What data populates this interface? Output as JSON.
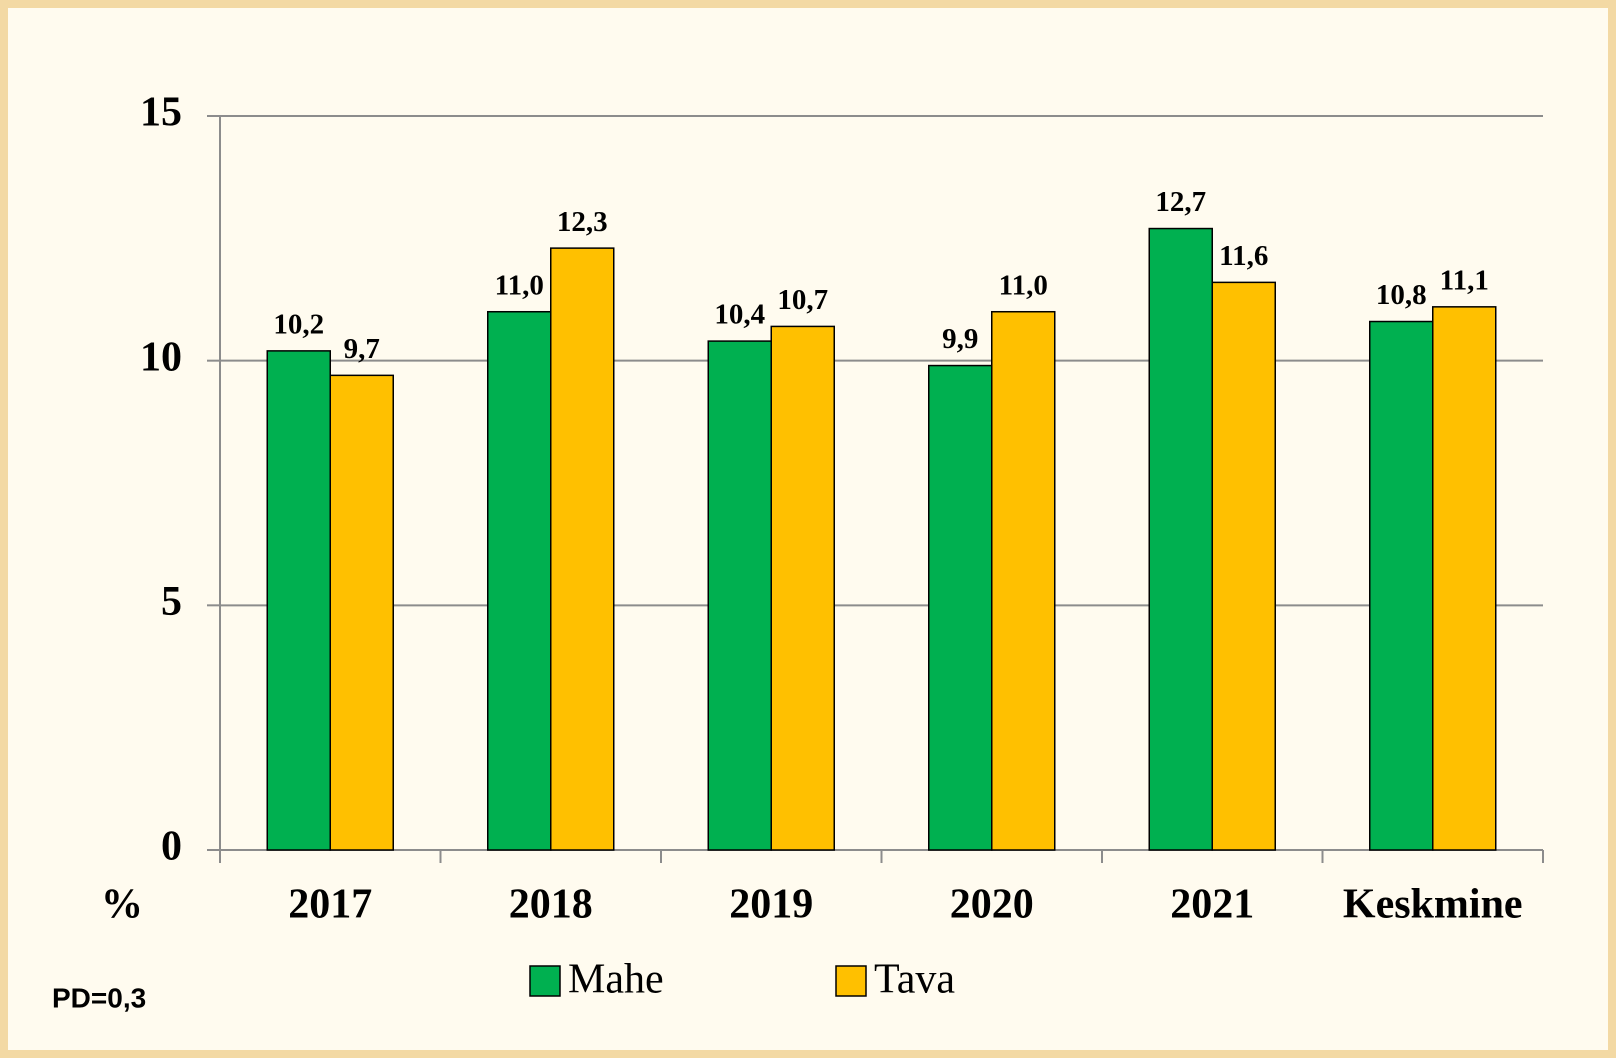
{
  "chart_data": {
    "type": "bar",
    "categories": [
      "2017",
      "2018",
      "2019",
      "2020",
      "2021",
      "Keskmine"
    ],
    "series": [
      {
        "name": "Mahe",
        "color": "#00b050",
        "values": [
          10.2,
          11.0,
          10.4,
          9.9,
          12.7,
          10.8
        ],
        "value_labels": [
          "10,2",
          "11,0",
          "10,4",
          "9,9",
          "12,7",
          "10,8"
        ]
      },
      {
        "name": "Tava",
        "color": "#ffc000",
        "values": [
          9.7,
          12.3,
          10.7,
          11.0,
          11.6,
          11.1
        ],
        "value_labels": [
          "9,7",
          "12,3",
          "10,7",
          "11,0",
          "11,6",
          "11,1"
        ]
      }
    ],
    "y_label": "%",
    "annotation": "PD=0,3",
    "ylim": [
      0,
      15
    ],
    "yticks": [
      0,
      5,
      10,
      15
    ],
    "grid": true,
    "legend": "bottom"
  }
}
